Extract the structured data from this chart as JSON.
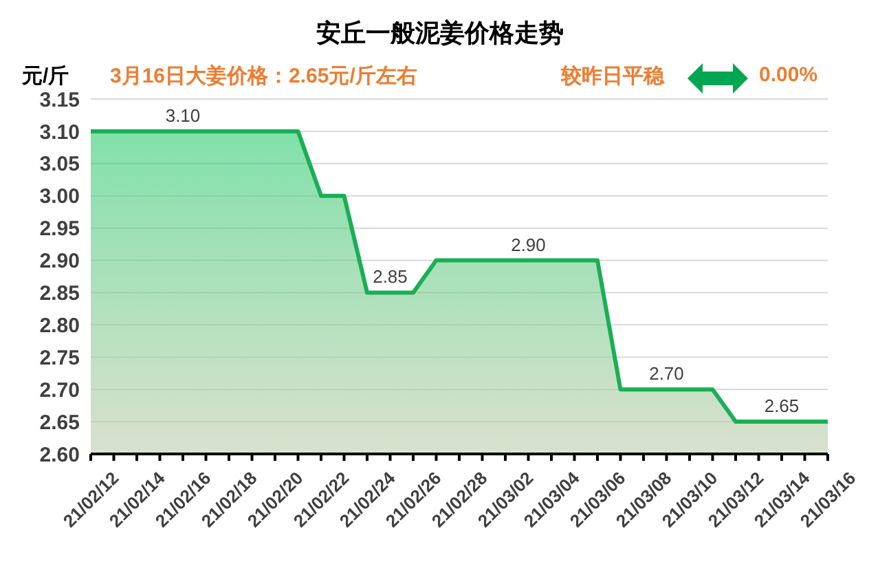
{
  "chart_data": {
    "type": "area",
    "title": "安丘一般泥姜价格走势",
    "ylabel": "元/斤",
    "annotations": [
      "3月16日大姜价格：2.65元/斤左右",
      "较昨日平稳",
      "0.00%"
    ],
    "categories": [
      "21/02/12",
      null,
      "21/02/14",
      null,
      "21/02/16",
      null,
      "21/02/18",
      null,
      "21/02/20",
      null,
      "21/02/22",
      null,
      "21/02/24",
      null,
      "21/02/26",
      null,
      "21/02/28",
      null,
      "21/03/02",
      null,
      "21/03/04",
      null,
      "21/03/06",
      null,
      "21/03/08",
      null,
      "21/03/10",
      null,
      "21/03/12",
      null,
      "21/03/14",
      null,
      "21/03/16"
    ],
    "values": [
      3.1,
      3.1,
      3.1,
      3.1,
      3.1,
      3.1,
      3.1,
      3.1,
      3.1,
      3.1,
      3.0,
      3.0,
      2.85,
      2.85,
      2.85,
      2.9,
      2.9,
      2.9,
      2.9,
      2.9,
      2.9,
      2.9,
      2.9,
      2.7,
      2.7,
      2.7,
      2.7,
      2.7,
      2.65,
      2.65,
      2.65,
      2.65,
      2.65
    ],
    "value_labels": [
      null,
      null,
      null,
      null,
      "3.10",
      null,
      null,
      null,
      null,
      null,
      null,
      null,
      null,
      "2.85",
      null,
      null,
      null,
      null,
      null,
      "2.90",
      null,
      null,
      null,
      null,
      null,
      "2.70",
      null,
      null,
      null,
      null,
      "2.65",
      null,
      null
    ],
    "color": "#1aaf54",
    "ylim": [
      2.6,
      3.15
    ],
    "yticks": [
      {
        "value": 2.6,
        "label": "2.60"
      },
      {
        "value": 2.65,
        "label": "2.65"
      },
      {
        "value": 2.7,
        "label": "2.70"
      },
      {
        "value": 2.75,
        "label": "2.75"
      },
      {
        "value": 2.8,
        "label": "2.80"
      },
      {
        "value": 2.85,
        "label": "2.85"
      },
      {
        "value": 2.9,
        "label": "2.90"
      },
      {
        "value": 2.95,
        "label": "2.95"
      },
      {
        "value": 3.0,
        "label": "3.00"
      },
      {
        "value": 3.05,
        "label": "3.05"
      },
      {
        "value": 3.1,
        "label": "3.10"
      },
      {
        "value": 3.15,
        "label": "3.15"
      }
    ],
    "grid": "y"
  }
}
